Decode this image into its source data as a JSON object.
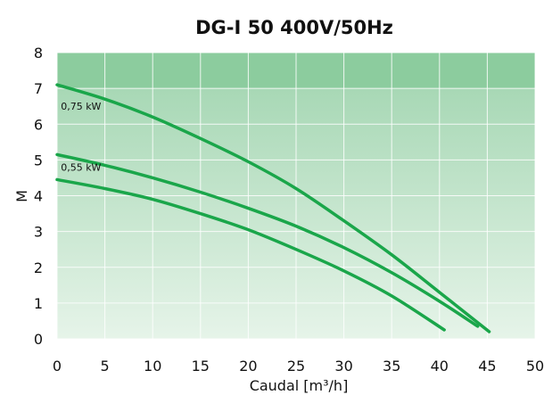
{
  "chart_data": {
    "type": "line",
    "title": "DG-I 50 400V/50Hz",
    "xlabel": "Caudal [m³/h]",
    "ylabel": "M",
    "xlim": [
      0,
      50
    ],
    "ylim": [
      0,
      8
    ],
    "x_ticks": [
      "0",
      "5",
      "10",
      "15",
      "20",
      "25",
      "30",
      "35",
      "40",
      "45",
      "50"
    ],
    "y_ticks": [
      "0",
      "1",
      "2",
      "3",
      "4",
      "5",
      "6",
      "7",
      "8"
    ],
    "grid": true,
    "colors": {
      "curve": "#1aa64a",
      "band_top": "#8ccc9e",
      "background_top": "#9fd4ae",
      "background_bottom": "#e6f4e9"
    },
    "annotations": [
      {
        "text": "0,75 kW",
        "x": 0.3,
        "y": 6.4
      },
      {
        "text": "0,55 kW",
        "x": 0.3,
        "y": 4.7
      }
    ],
    "series": [
      {
        "x": [
          0,
          5,
          10,
          15,
          20,
          25,
          30,
          35,
          40,
          45.2
        ],
        "y": [
          7.1,
          6.7,
          6.2,
          5.6,
          4.95,
          4.2,
          3.3,
          2.35,
          1.3,
          0.2
        ]
      },
      {
        "x": [
          0,
          5,
          10,
          15,
          20,
          25,
          30,
          35,
          40,
          44
        ],
        "y": [
          5.15,
          4.85,
          4.5,
          4.1,
          3.65,
          3.15,
          2.55,
          1.85,
          1.05,
          0.35
        ]
      },
      {
        "x": [
          0,
          5,
          10,
          15,
          20,
          25,
          30,
          35,
          40.5
        ],
        "y": [
          4.45,
          4.2,
          3.9,
          3.5,
          3.05,
          2.5,
          1.9,
          1.2,
          0.25
        ]
      }
    ]
  }
}
